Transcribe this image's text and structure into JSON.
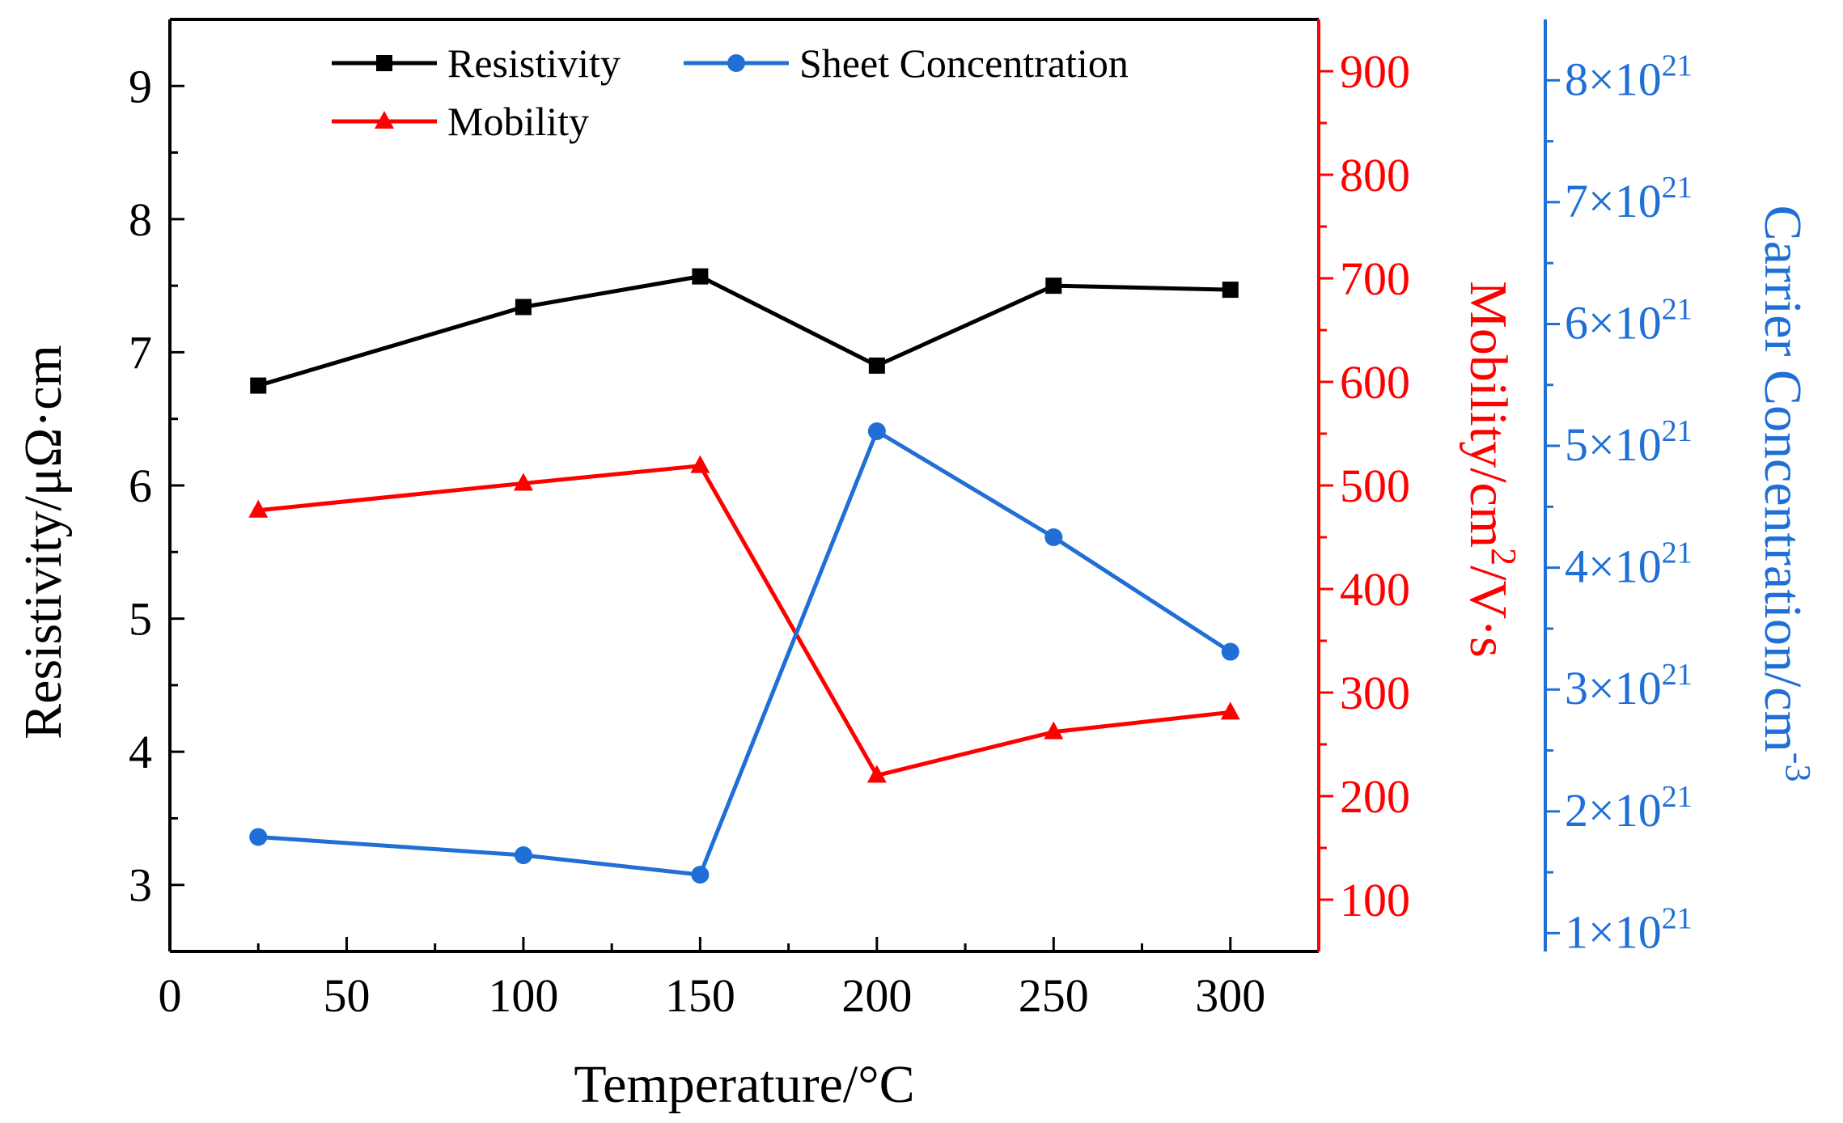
{
  "chart_data": {
    "type": "line",
    "x": [
      25,
      100,
      150,
      200,
      250,
      300
    ],
    "xlabel": "Temperature/°C",
    "xlim": [
      0,
      325
    ],
    "xticks": [
      0,
      50,
      100,
      150,
      200,
      250,
      300
    ],
    "series": [
      {
        "name": "Resistivity",
        "axis": "left",
        "marker": "square",
        "color": "#000000",
        "values": [
          6.75,
          7.34,
          7.57,
          6.9,
          7.5,
          7.47
        ]
      },
      {
        "name": "Mobility",
        "axis": "right1",
        "marker": "triangle",
        "color": "#ff0000",
        "values": [
          476,
          502,
          519,
          220,
          262,
          281
        ]
      },
      {
        "name": "Sheet Concentration",
        "axis": "right2",
        "marker": "circle",
        "color": "#1f6fd6",
        "values": [
          1.79,
          1.64,
          1.48,
          5.12,
          4.25,
          3.31
        ],
        "unit_multiplier": "×10^21"
      }
    ],
    "axes": {
      "left": {
        "label": "Resistivity/μΩ·cm",
        "ylim": [
          2.5,
          9.5
        ],
        "ticks": [
          3,
          4,
          5,
          6,
          7,
          8,
          9
        ],
        "tick_labels": [
          "3",
          "4",
          "5",
          "6",
          "7",
          "8",
          "9"
        ],
        "color": "#000000"
      },
      "right1": {
        "label_prefix": "Mobility/cm",
        "label_sup": "2",
        "label_suffix": "/V·s",
        "ylim": [
          50,
          950
        ],
        "ticks": [
          100,
          200,
          300,
          400,
          500,
          600,
          700,
          800,
          900
        ],
        "tick_labels": [
          "100",
          "200",
          "300",
          "400",
          "500",
          "600",
          "700",
          "800",
          "900"
        ],
        "color": "#ff0000"
      },
      "right2": {
        "label_prefix": "Carrier Concentration/cm",
        "label_sup": "-3",
        "ylim": [
          0.85,
          8.5
        ],
        "ticks": [
          1,
          2,
          3,
          4,
          5,
          6,
          7,
          8
        ],
        "tick_labels": [
          "1×10",
          "2×10",
          "3×10",
          "4×10",
          "5×10",
          "6×10",
          "7×10",
          "8×10"
        ],
        "tick_exponent": "21",
        "color": "#1f6fd6"
      }
    },
    "legend": [
      "Resistivity",
      "Sheet Concentration",
      "Mobility"
    ],
    "legend_position": "top"
  }
}
